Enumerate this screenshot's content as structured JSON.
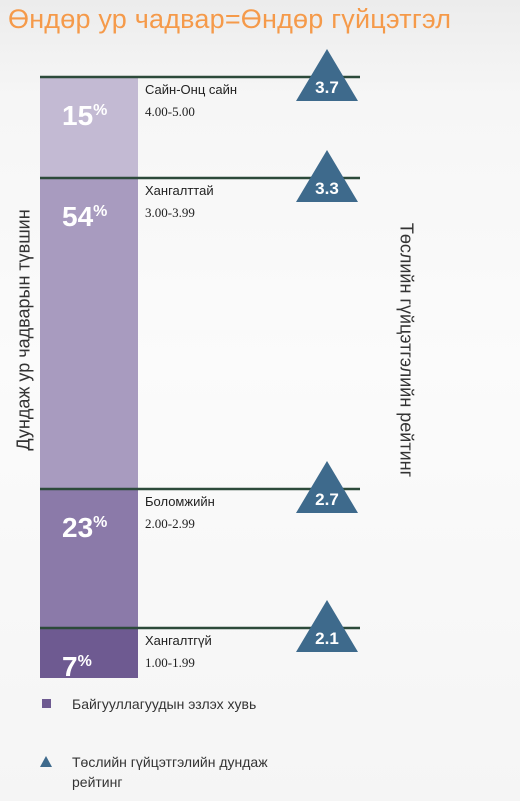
{
  "title": "Өндөр ур чадвар=Өндөр гүйцэтгэл",
  "chart_data": {
    "type": "bar",
    "stacked": true,
    "ylabel": "Дундаж ур чадварын түвшин",
    "y2label": "Төслийн гүйцэтгэлийн рейтинг",
    "tiers": [
      {
        "name": "Сайн-Онц сайн",
        "range": "4.00-5.00",
        "share": 15,
        "share_label": "15%",
        "rating": 3.7,
        "rating_label": "3.7",
        "color": "#c3bad3"
      },
      {
        "name": "Хангалттай",
        "range": "3.00-3.99",
        "share": 54,
        "share_label": "54%",
        "rating": 3.3,
        "rating_label": "3.3",
        "color": "#a89bbf"
      },
      {
        "name": "Боломжийн",
        "range": "2.00-2.99",
        "share": 23,
        "share_label": "23%",
        "rating": 2.7,
        "rating_label": "2.7",
        "color": "#8b7aa9"
      },
      {
        "name": "Хангалтгүй",
        "range": "1.00-1.99",
        "share": 7,
        "share_label": "7%",
        "rating": 2.1,
        "rating_label": "2.1",
        "color": "#6e5a91"
      }
    ],
    "legend": [
      {
        "label": "Байгууллагуудын эзлэх хувь",
        "marker": "square",
        "color": "#6e5a91"
      },
      {
        "label": "Төслийн гүйцэтгэлийн дундаж рейтинг",
        "marker": "triangle",
        "color": "#3e6a8c"
      }
    ],
    "colors": {
      "line": "#2c4a3a",
      "triangle": "#3e6a8c"
    }
  }
}
